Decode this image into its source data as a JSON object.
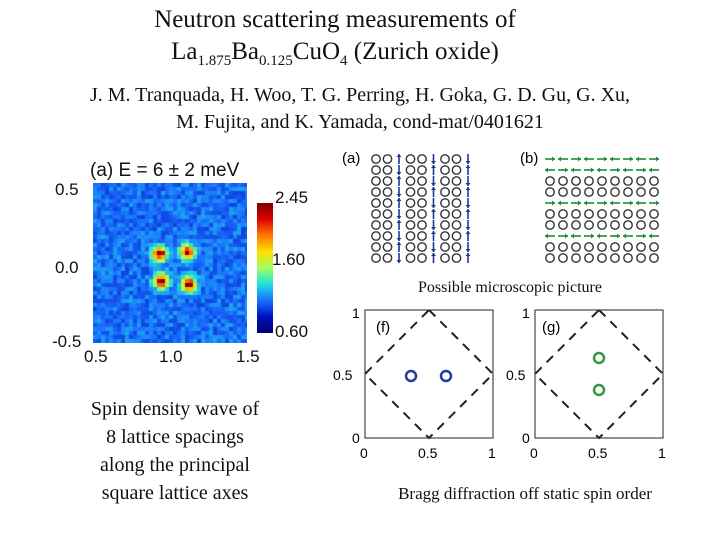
{
  "title": {
    "line1": "Neutron scattering measurements of",
    "formula": [
      {
        "text": "La",
        "sub": "1.875"
      },
      {
        "text": "Ba",
        "sub": "0.125"
      },
      {
        "text": "Cu",
        "sub": ""
      },
      {
        "text": "O",
        "sub": "4"
      }
    ],
    "suffix": " (Zurich oxide)"
  },
  "authors": {
    "line1": "J. M. Tranquada, H. Woo, T. G. Perring, H. Goka, G. D. Gu, G. Xu,",
    "line2": "M. Fujita, and K. Yamada, cond-mat/0401621"
  },
  "heatmap": {
    "label": "(a) E = 6 ± 2 meV",
    "y_ticks": [
      "0.5",
      "0.0",
      "-0.5"
    ],
    "x_ticks": [
      "0.5",
      "1.0",
      "1.5"
    ],
    "colorbar_ticks": [
      "2.45",
      "1.60",
      "0.60"
    ]
  },
  "spin_panels": {
    "label_a": "(a)",
    "label_b": "(b)",
    "caption": "Possible microscopic picture"
  },
  "bragg_panels": {
    "label_f": "(f)",
    "label_g": "(g)",
    "f_y_ticks": [
      "1",
      "0.5",
      "0"
    ],
    "g_y_ticks": [
      "1",
      "0.5",
      "0"
    ],
    "f_x_ticks": [
      "0",
      "0.5",
      "1"
    ],
    "g_x_ticks": [
      "0",
      "0.5",
      "1"
    ],
    "caption": "Bragg diffraction off static spin order"
  },
  "caption_left": {
    "line1": "Spin density wave of",
    "line2": "8 lattice spacings",
    "line3": "along the principal",
    "line4": "square lattice axes"
  },
  "colors": {
    "blue_spin": "#1b3b8c",
    "green_spin": "#1f8a3a",
    "f_peaks": "#1f3f9a",
    "g_peaks": "#2e9a3a"
  }
}
